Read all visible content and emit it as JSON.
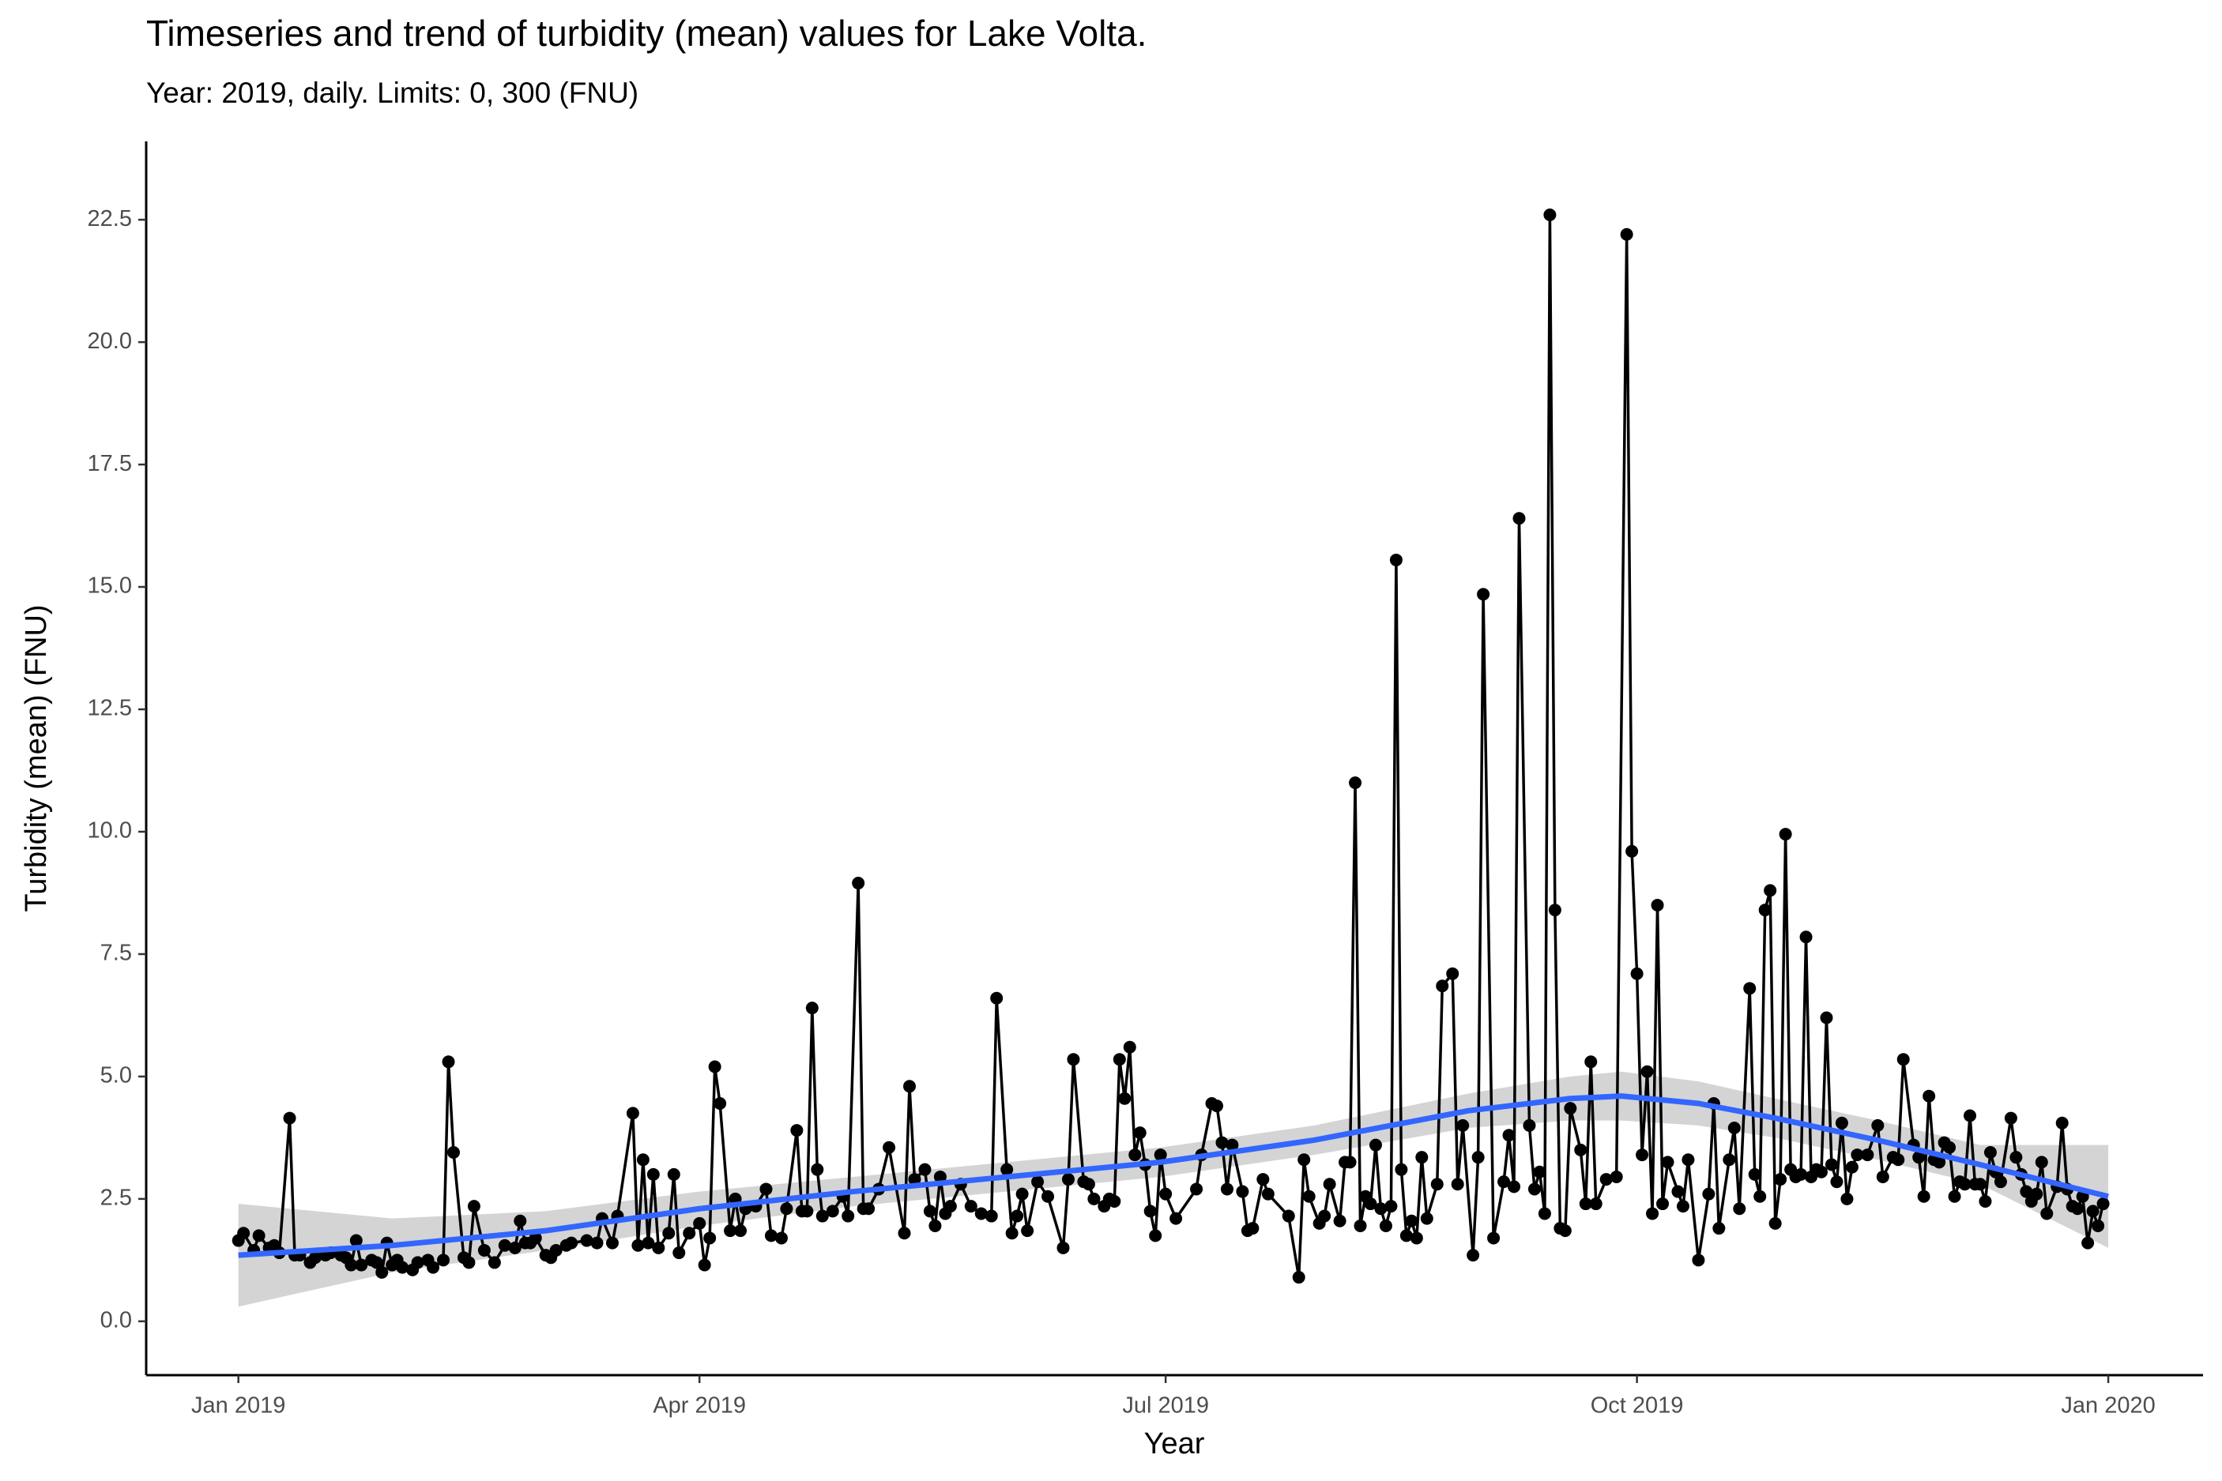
{
  "chart_data": {
    "type": "line",
    "title": "Timeseries and trend of turbidity (mean) values for Lake Volta.",
    "subtitle": "Year: 2019, daily. Limits: 0, 300 (FNU)",
    "x_label": "Year",
    "y_label": "Turbidity (mean) (FNU)",
    "xlim": [
      -18,
      383.5
    ],
    "ylim": [
      -1.1,
      24.1
    ],
    "xticks": [
      {
        "value": 0,
        "label": "Jan 2019"
      },
      {
        "value": 90,
        "label": "Apr 2019"
      },
      {
        "value": 181,
        "label": "Jul 2019"
      },
      {
        "value": 273,
        "label": "Oct 2019"
      },
      {
        "value": 365,
        "label": "Jan 2020"
      }
    ],
    "yticks": [
      {
        "value": 0,
        "label": "0.0"
      },
      2.5,
      {
        "value": 5,
        "label": "5.0"
      },
      7.5,
      {
        "value": 10,
        "label": "10.0"
      },
      12.5,
      {
        "value": 15,
        "label": "15.0"
      },
      17.5,
      {
        "value": 20,
        "label": "20.0"
      },
      22.5
    ],
    "grid": false,
    "color": "#000000",
    "x": [
      0,
      1,
      3,
      4,
      6,
      7,
      8,
      10,
      11,
      12,
      14,
      15,
      17,
      18,
      20,
      21,
      22,
      23,
      24,
      26,
      27,
      28,
      29,
      30,
      31,
      32,
      34,
      35,
      37,
      38,
      40,
      41,
      42,
      44,
      45,
      46,
      48,
      50,
      52,
      54,
      55,
      56,
      57,
      58,
      60,
      61,
      62,
      64,
      65,
      68,
      70,
      71,
      73,
      74,
      77,
      78,
      79,
      80,
      81,
      82,
      84,
      85,
      86,
      88,
      90,
      91,
      92,
      93,
      94,
      96,
      97,
      98,
      99,
      101,
      103,
      104,
      106,
      107,
      109,
      110,
      111,
      112,
      113,
      114,
      116,
      118,
      119,
      121,
      122,
      123,
      125,
      127,
      130,
      131,
      132,
      134,
      135,
      136,
      137,
      138,
      139,
      141,
      143,
      145,
      147,
      148,
      150,
      151,
      152,
      153,
      154,
      156,
      158,
      161,
      162,
      163,
      165,
      166,
      167,
      169,
      170,
      171,
      172,
      173,
      174,
      175,
      176,
      177,
      178,
      179,
      180,
      181,
      183,
      187,
      188,
      190,
      191,
      192,
      193,
      194,
      196,
      197,
      198,
      200,
      201,
      205,
      207,
      208,
      209,
      211,
      212,
      213,
      215,
      216,
      217,
      218,
      219,
      220,
      221,
      222,
      223,
      224,
      225,
      226,
      227,
      228,
      229,
      230,
      231,
      232,
      234,
      235,
      237,
      238,
      239,
      241,
      242,
      243,
      245,
      247,
      248,
      249,
      250,
      252,
      253,
      254,
      255,
      256,
      257,
      258,
      259,
      260,
      262,
      263,
      264,
      265,
      267,
      269,
      271,
      272,
      273,
      274,
      275,
      276,
      277,
      278,
      279,
      281,
      282,
      283,
      285,
      287,
      288,
      289,
      291,
      292,
      293,
      295,
      296,
      297,
      298,
      299,
      300,
      301,
      302,
      303,
      304,
      305,
      306,
      307,
      308,
      309,
      310,
      311,
      312,
      313,
      314,
      315,
      316,
      318,
      320,
      321,
      323,
      324,
      325,
      327,
      328,
      329,
      330,
      331,
      332,
      333,
      334,
      335,
      336,
      337,
      338,
      339,
      340,
      341,
      342,
      343,
      344,
      346,
      347,
      348,
      349,
      350,
      351,
      352,
      353,
      355,
      356,
      357,
      358,
      359,
      360,
      361,
      362,
      363,
      364
    ],
    "values": [
      1.65,
      1.8,
      1.45,
      1.75,
      1.5,
      1.55,
      1.4,
      4.15,
      1.35,
      1.35,
      1.2,
      1.3,
      1.35,
      1.4,
      1.35,
      1.3,
      1.15,
      1.65,
      1.15,
      1.25,
      1.2,
      1.0,
      1.6,
      1.15,
      1.25,
      1.1,
      1.05,
      1.2,
      1.25,
      1.1,
      1.25,
      5.3,
      3.45,
      1.3,
      1.2,
      2.35,
      1.45,
      1.2,
      1.55,
      1.5,
      2.05,
      1.6,
      1.6,
      1.7,
      1.35,
      1.3,
      1.45,
      1.55,
      1.6,
      1.65,
      1.6,
      2.1,
      1.6,
      2.15,
      4.25,
      1.55,
      3.3,
      1.6,
      3.0,
      1.5,
      1.8,
      3.0,
      1.4,
      1.8,
      2.0,
      1.15,
      1.7,
      5.2,
      4.45,
      1.85,
      2.5,
      1.85,
      2.3,
      2.35,
      2.7,
      1.75,
      1.7,
      2.3,
      3.9,
      2.25,
      2.25,
      6.4,
      3.1,
      2.15,
      2.25,
      2.55,
      2.15,
      8.95,
      2.3,
      2.3,
      2.7,
      3.55,
      1.8,
      4.8,
      2.9,
      3.1,
      2.25,
      1.95,
      2.95,
      2.2,
      2.35,
      2.8,
      2.35,
      2.2,
      2.15,
      6.6,
      3.1,
      1.8,
      2.15,
      2.6,
      1.85,
      2.85,
      2.55,
      1.5,
      2.9,
      5.35,
      2.85,
      2.8,
      2.5,
      2.35,
      2.5,
      2.45,
      5.35,
      4.55,
      5.6,
      3.4,
      3.85,
      3.2,
      2.25,
      1.75,
      3.4,
      2.6,
      2.1,
      2.7,
      3.4,
      4.45,
      4.4,
      3.65,
      2.7,
      3.6,
      2.65,
      1.85,
      1.9,
      2.9,
      2.6,
      2.15,
      0.9,
      3.3,
      2.55,
      2.0,
      2.15,
      2.8,
      2.05,
      3.25,
      3.25,
      11.0,
      1.95,
      2.55,
      2.4,
      3.6,
      2.3,
      1.95,
      2.35,
      15.55,
      3.1,
      1.75,
      2.05,
      1.7,
      3.35,
      2.1,
      2.8,
      6.85,
      7.1,
      2.8,
      4.0,
      1.35,
      3.35,
      14.85,
      1.7,
      2.85,
      3.8,
      2.75,
      16.4,
      4.0,
      2.7,
      3.05,
      2.2,
      22.6,
      8.4,
      1.9,
      1.85,
      4.35,
      3.5,
      2.4,
      5.3,
      2.4,
      2.9,
      2.95,
      22.2,
      9.6,
      7.1,
      3.4,
      5.1,
      2.2,
      8.5,
      2.4,
      3.25,
      2.65,
      2.35,
      3.3,
      1.25,
      2.6,
      4.45,
      1.9,
      3.3,
      3.95,
      2.3,
      6.8,
      3.0,
      2.55,
      8.4,
      8.8,
      2.0,
      2.9,
      9.95,
      3.1,
      2.95,
      3.0,
      7.85,
      2.95,
      3.1,
      3.05,
      6.2,
      3.2,
      2.85,
      4.05,
      2.5,
      3.15,
      3.4,
      3.4,
      4.0,
      2.95,
      3.35,
      3.3,
      5.35,
      3.6,
      3.35,
      2.55,
      4.6,
      3.3,
      3.25,
      3.65,
      3.55,
      2.55,
      2.85,
      2.8,
      4.2,
      2.8,
      2.8,
      2.45,
      3.45,
      3.05,
      2.85,
      4.15,
      3.35,
      3.0,
      2.65,
      2.45,
      2.6,
      3.25,
      2.2,
      2.75,
      4.05,
      2.7,
      2.35,
      2.3,
      2.55,
      1.6,
      2.25,
      1.95,
      2.4
    ],
    "trend": {
      "color": "#3366ff",
      "band_color": "#d4d4d4",
      "x": [
        0,
        30,
        60,
        90,
        120,
        150,
        180,
        210,
        240,
        260,
        270,
        285,
        300,
        320,
        340,
        365
      ],
      "values": [
        1.35,
        1.55,
        1.85,
        2.3,
        2.65,
        2.95,
        3.25,
        3.7,
        4.3,
        4.55,
        4.6,
        4.45,
        4.15,
        3.7,
        3.2,
        2.55
      ],
      "lower": [
        0.3,
        1.0,
        1.45,
        1.95,
        2.35,
        2.65,
        2.95,
        3.4,
        3.95,
        4.1,
        4.1,
        4.0,
        3.75,
        3.3,
        2.8,
        1.5
      ],
      "upper": [
        2.4,
        2.1,
        2.25,
        2.65,
        2.95,
        3.25,
        3.55,
        4.0,
        4.65,
        5.0,
        5.1,
        4.9,
        4.55,
        4.1,
        3.6,
        3.6
      ]
    }
  }
}
